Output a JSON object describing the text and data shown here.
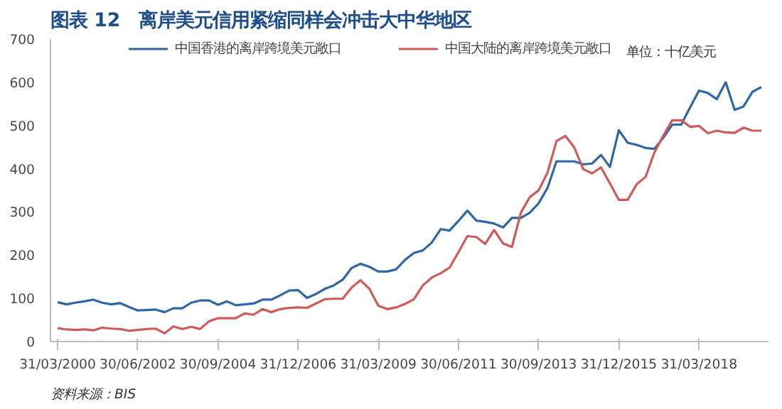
{
  "chart_data": {
    "type": "line",
    "title": "图表 12　离岸美元信用紧缩同样会冲击大中华地区",
    "categories": [
      "31/03/2000",
      null,
      null,
      null,
      null,
      null,
      null,
      null,
      null,
      "30/06/2002",
      null,
      null,
      null,
      null,
      null,
      null,
      null,
      null,
      "30/09/2004",
      null,
      null,
      null,
      null,
      null,
      null,
      null,
      null,
      "31/12/2006",
      null,
      null,
      null,
      null,
      null,
      null,
      null,
      null,
      "31/03/2009",
      null,
      null,
      null,
      null,
      null,
      null,
      null,
      null,
      "30/06/2011",
      null,
      null,
      null,
      null,
      null,
      null,
      null,
      null,
      "30/09/2013",
      null,
      null,
      null,
      null,
      null,
      null,
      null,
      null,
      "31/12/2015",
      null,
      null,
      null,
      null,
      null,
      null,
      null,
      null,
      "31/03/2018",
      null,
      null,
      null,
      null,
      null,
      null,
      null
    ],
    "series": [
      {
        "name": "中国香港的离岸跨境美元敞口",
        "color": "#2e67a6",
        "values": [
          91,
          86,
          90,
          93,
          97,
          90,
          86,
          89,
          80,
          72,
          73,
          74,
          68,
          77,
          77,
          90,
          95,
          95,
          85,
          93,
          84,
          86,
          88,
          97,
          97,
          107,
          118,
          119,
          101,
          110,
          122,
          130,
          143,
          170,
          180,
          173,
          162,
          162,
          167,
          189,
          205,
          211,
          229,
          260,
          257,
          279,
          303,
          280,
          277,
          273,
          264,
          286,
          286,
          298,
          320,
          356,
          417,
          417,
          417,
          410,
          412,
          432,
          404,
          489,
          460,
          455,
          448,
          446,
          472,
          502,
          502,
          542,
          581,
          575,
          561,
          600,
          536,
          544,
          578,
          589
        ]
      },
      {
        "name": "中国大陆的离岸跨境美元敞口",
        "color": "#d05a5a",
        "values": [
          31,
          28,
          27,
          28,
          26,
          32,
          30,
          29,
          25,
          27,
          29,
          30,
          19,
          35,
          29,
          34,
          29,
          47,
          54,
          54,
          54,
          65,
          62,
          75,
          68,
          75,
          78,
          79,
          78,
          88,
          98,
          99,
          99,
          125,
          142,
          122,
          83,
          75,
          79,
          87,
          98,
          130,
          148,
          158,
          171,
          207,
          244,
          242,
          226,
          258,
          227,
          219,
          298,
          334,
          350,
          391,
          464,
          476,
          449,
          399,
          389,
          403,
          366,
          328,
          328,
          364,
          381,
          438,
          477,
          512,
          512,
          497,
          499,
          482,
          488,
          484,
          483,
          495,
          488,
          488
        ]
      }
    ],
    "ylim": [
      0,
      700
    ],
    "yticks": [
      0,
      100,
      200,
      300,
      400,
      500,
      600,
      700
    ],
    "grid": false,
    "legend": "top",
    "annotations": [
      "单位：十亿美元",
      "资料来源：BIS"
    ]
  }
}
